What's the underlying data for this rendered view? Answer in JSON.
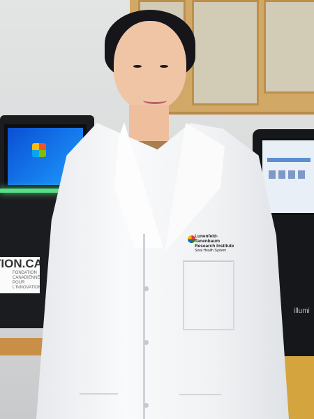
{
  "photo": {
    "sign_text_large": "ATION.CA",
    "sign_text_small": [
      "FONDATION CANADIENNE",
      "POUR L'INNOVATION"
    ],
    "coat_logo": [
      "Lunenfeld-Tanenbaum",
      "Research Institute",
      "Sinai Health System"
    ],
    "instrument_brand": "illumi"
  }
}
